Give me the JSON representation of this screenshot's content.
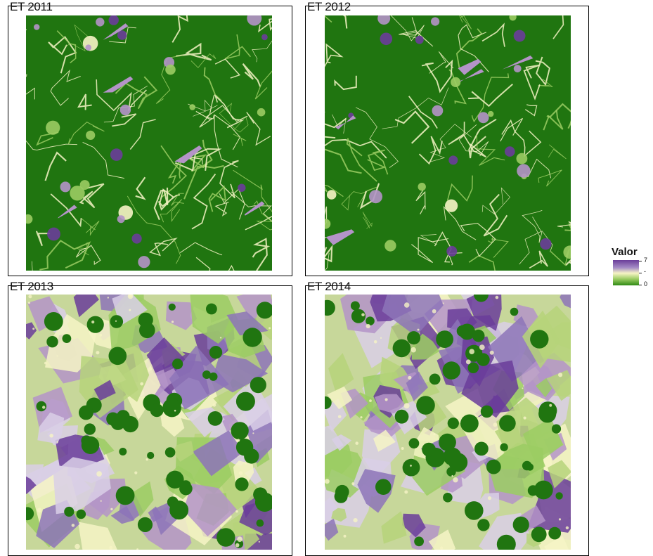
{
  "panels": [
    {
      "title": "ET 2011",
      "theme": "green",
      "seed": 11
    },
    {
      "title": "ET 2012",
      "theme": "green",
      "seed": 12
    },
    {
      "title": "ET 2013",
      "theme": "mixed",
      "seed": 13
    },
    {
      "title": "ET 2014",
      "theme": "mixed",
      "seed": 14
    }
  ],
  "legend": {
    "title": "Valor",
    "max_label": "7",
    "mid_label": "-",
    "min_label": "0",
    "min_value": 0,
    "max_value": 7
  },
  "colors": {
    "dark_green": "#207510",
    "light_green": "#9bcc63",
    "pale_yellow": "#f6f4c5",
    "light_purple": "#b494c8",
    "dark_purple": "#6a3d9a"
  }
}
